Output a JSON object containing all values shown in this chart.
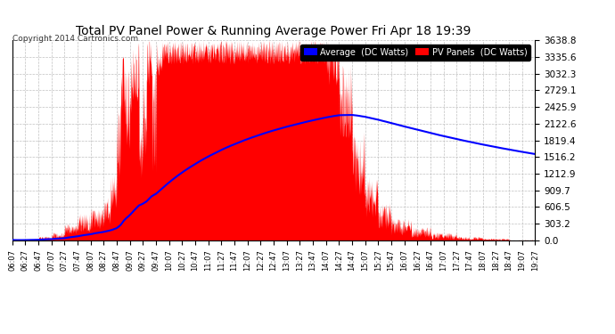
{
  "title": "Total PV Panel Power & Running Average Power Fri Apr 18 19:39",
  "copyright": "Copyright 2014 Cartronics.com",
  "legend_avg": "Average  (DC Watts)",
  "legend_pv": "PV Panels  (DC Watts)",
  "y_max": 3638.8,
  "y_ticks": [
    0.0,
    303.2,
    606.5,
    909.7,
    1212.9,
    1516.2,
    1819.4,
    2122.6,
    2425.9,
    2729.1,
    3032.3,
    3335.6,
    3638.8
  ],
  "x_tick_labels": [
    "06:07",
    "06:27",
    "06:47",
    "07:07",
    "07:27",
    "07:47",
    "08:07",
    "08:27",
    "08:47",
    "09:07",
    "09:27",
    "09:47",
    "10:07",
    "10:27",
    "10:47",
    "11:07",
    "11:27",
    "11:47",
    "12:07",
    "12:27",
    "12:47",
    "13:07",
    "13:27",
    "13:47",
    "14:07",
    "14:27",
    "14:47",
    "15:07",
    "15:27",
    "15:47",
    "16:07",
    "16:27",
    "16:47",
    "17:07",
    "17:27",
    "17:47",
    "18:07",
    "18:27",
    "18:47",
    "19:07",
    "19:27"
  ],
  "pv_color": "#FF0000",
  "avg_color": "#0000FF",
  "bg_color": "#FFFFFF",
  "grid_color": "#C0C0C0",
  "title_color": "#000000",
  "font_family": "DejaVu Sans"
}
